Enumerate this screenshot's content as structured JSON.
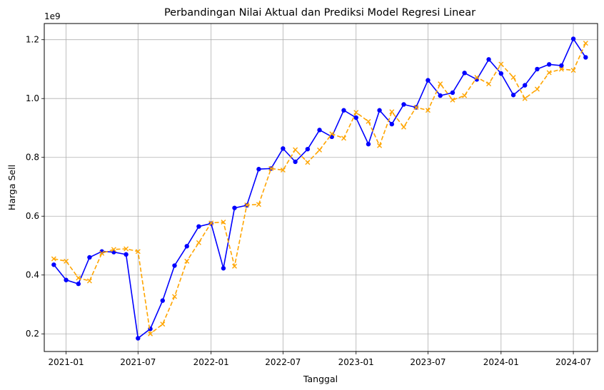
{
  "chart_data": {
    "type": "line",
    "title": "Perbandingan Nilai Aktual dan Prediksi Model Regresi Linear",
    "xlabel": "Tanggal",
    "ylabel": "Harga Sell",
    "y_offset_label": "1e9",
    "grid": true,
    "legend": "none",
    "ylim": [
      0.14,
      1.255
    ],
    "xlim": [
      "2020-11-07",
      "2024-08-31"
    ],
    "y_ticks": [
      0.2,
      0.4,
      0.6,
      0.8,
      1.0,
      1.2
    ],
    "y_tick_labels": [
      "0.2",
      "0.4",
      "0.6",
      "0.8",
      "1.0",
      "1.2"
    ],
    "x_ticks": [
      "2021-01-01",
      "2021-07-01",
      "2022-01-01",
      "2022-07-01",
      "2023-01-01",
      "2023-07-01",
      "2024-01-01",
      "2024-07-01"
    ],
    "x_tick_labels": [
      "2021-01",
      "2021-07",
      "2022-01",
      "2022-07",
      "2023-01",
      "2023-07",
      "2024-01",
      "2024-07"
    ],
    "x": [
      "2020-12-01",
      "2021-01-01",
      "2021-02-01",
      "2021-03-01",
      "2021-04-01",
      "2021-05-01",
      "2021-06-01",
      "2021-07-01",
      "2021-08-01",
      "2021-09-01",
      "2021-10-01",
      "2021-11-01",
      "2021-12-01",
      "2022-01-01",
      "2022-02-01",
      "2022-03-01",
      "2022-04-01",
      "2022-05-01",
      "2022-06-01",
      "2022-07-01",
      "2022-08-01",
      "2022-09-01",
      "2022-10-01",
      "2022-11-01",
      "2022-12-01",
      "2023-01-01",
      "2023-02-01",
      "2023-03-01",
      "2023-04-01",
      "2023-05-01",
      "2023-06-01",
      "2023-07-01",
      "2023-08-01",
      "2023-09-01",
      "2023-10-01",
      "2023-11-01",
      "2023-12-01",
      "2024-01-01",
      "2024-02-01",
      "2024-03-01",
      "2024-04-01",
      "2024-05-01",
      "2024-06-01",
      "2024-07-01",
      "2024-08-01"
    ],
    "series": [
      {
        "color": "#0000ff",
        "line_style": "solid",
        "marker": "circle",
        "values": [
          0.435,
          0.383,
          0.37,
          0.46,
          0.48,
          0.478,
          0.47,
          0.185,
          0.217,
          0.313,
          0.432,
          0.498,
          0.565,
          0.575,
          0.423,
          0.628,
          0.637,
          0.76,
          0.762,
          0.83,
          0.785,
          0.828,
          0.893,
          0.87,
          0.96,
          0.935,
          0.845,
          0.96,
          0.913,
          0.98,
          0.97,
          1.062,
          1.01,
          1.02,
          1.087,
          1.065,
          1.133,
          1.085,
          1.012,
          1.045,
          1.1,
          1.116,
          1.112,
          1.203,
          1.14
        ]
      },
      {
        "color": "#ffa500",
        "line_style": "dashed",
        "marker": "x",
        "values": [
          0.455,
          0.447,
          0.39,
          0.38,
          0.474,
          0.487,
          0.489,
          0.48,
          0.2,
          0.233,
          0.327,
          0.447,
          0.51,
          0.577,
          0.58,
          0.43,
          0.638,
          0.64,
          0.762,
          0.757,
          0.826,
          0.783,
          0.825,
          0.88,
          0.865,
          0.953,
          0.922,
          0.84,
          0.955,
          0.903,
          0.97,
          0.96,
          1.05,
          0.995,
          1.01,
          1.072,
          1.05,
          1.117,
          1.072,
          1.0,
          1.032,
          1.088,
          1.1,
          1.096,
          1.188
        ]
      }
    ]
  }
}
